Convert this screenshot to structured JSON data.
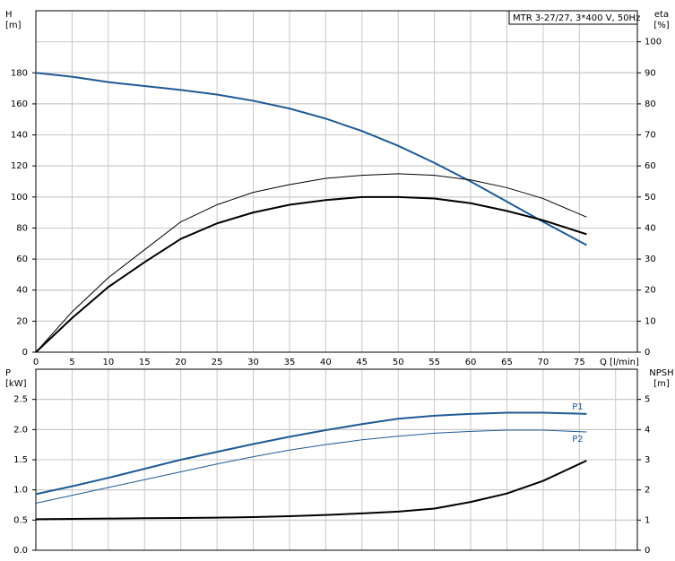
{
  "chart_data": [
    {
      "type": "line",
      "title": "MTR 3-27/27, 3*400 V, 50Hz",
      "y_label": [
        "H",
        "[m]"
      ],
      "y2_label": [
        "eta",
        "[%]"
      ],
      "x_label": "Q [l/min]",
      "x": [
        0,
        5,
        10,
        15,
        20,
        25,
        30,
        35,
        40,
        45,
        50,
        55,
        60,
        65,
        70,
        76
      ],
      "xlim": [
        0,
        83
      ],
      "xticks": [
        0,
        5,
        10,
        15,
        20,
        25,
        30,
        35,
        40,
        45,
        50,
        55,
        60,
        65,
        70,
        75
      ],
      "ylim": [
        0,
        220
      ],
      "yticks": [
        0,
        20,
        40,
        60,
        80,
        100,
        120,
        140,
        160,
        180
      ],
      "y2lim": [
        0,
        110
      ],
      "y2ticks": [
        0,
        10,
        20,
        30,
        40,
        50,
        60,
        70,
        80,
        90,
        100
      ],
      "grid": true,
      "series": [
        {
          "color": "#1f5a96",
          "linewidth": 2,
          "values": [
            180,
            177.5,
            174,
            171.5,
            169,
            166,
            162,
            157,
            150.5,
            142.5,
            133,
            122,
            110,
            97,
            84,
            69
          ]
        },
        {
          "color": "#000000",
          "linewidth": 1,
          "axis": "y2",
          "values": [
            0,
            13,
            24,
            33,
            42,
            47.5,
            51.5,
            54,
            56,
            57,
            57.5,
            57,
            55.5,
            53,
            49.5,
            43.5
          ]
        },
        {
          "color": "#000000",
          "linewidth": 2,
          "axis": "y2",
          "values": [
            0,
            11,
            21,
            29,
            36.5,
            41.5,
            45,
            47.5,
            49,
            50,
            50,
            49.5,
            48,
            45.5,
            42.5,
            38
          ]
        }
      ]
    },
    {
      "type": "line",
      "y_label": [
        "P",
        "[kW]"
      ],
      "y2_label": [
        "NPSH",
        "[m]"
      ],
      "x": [
        0,
        5,
        10,
        15,
        20,
        25,
        30,
        35,
        40,
        45,
        50,
        55,
        60,
        65,
        70,
        76
      ],
      "xlim": [
        0,
        83
      ],
      "xticks": [
        0,
        5,
        10,
        15,
        20,
        25,
        30,
        35,
        40,
        45,
        50,
        55,
        60,
        65,
        70,
        75,
        80
      ],
      "ylim": [
        0,
        3
      ],
      "yticks": [
        {
          "value": 0,
          "label": "0.0"
        },
        0.5,
        {
          "value": 1,
          "label": "1.0"
        },
        1.5,
        {
          "value": 2,
          "label": "2.0"
        },
        2.5
      ],
      "y2lim": [
        0,
        6
      ],
      "y2ticks": [
        0,
        1,
        2,
        3,
        4,
        5
      ],
      "grid": true,
      "series": [
        {
          "name": "P1",
          "color": "#1f5a96",
          "linewidth": 2,
          "values": [
            0.93,
            1.06,
            1.2,
            1.35,
            1.5,
            1.63,
            1.76,
            1.88,
            1.99,
            2.09,
            2.18,
            2.23,
            2.26,
            2.28,
            2.28,
            2.26
          ]
        },
        {
          "name": "P2",
          "color": "#1f5a96",
          "linewidth": 1,
          "values": [
            0.78,
            0.91,
            1.04,
            1.17,
            1.3,
            1.43,
            1.55,
            1.66,
            1.75,
            1.83,
            1.89,
            1.94,
            1.97,
            1.99,
            1.99,
            1.96
          ]
        },
        {
          "color": "#000000",
          "linewidth": 2,
          "axis": "y2",
          "values": [
            1.03,
            1.04,
            1.05,
            1.06,
            1.07,
            1.08,
            1.1,
            1.13,
            1.17,
            1.22,
            1.28,
            1.38,
            1.6,
            1.88,
            2.3,
            2.97
          ]
        }
      ]
    }
  ]
}
